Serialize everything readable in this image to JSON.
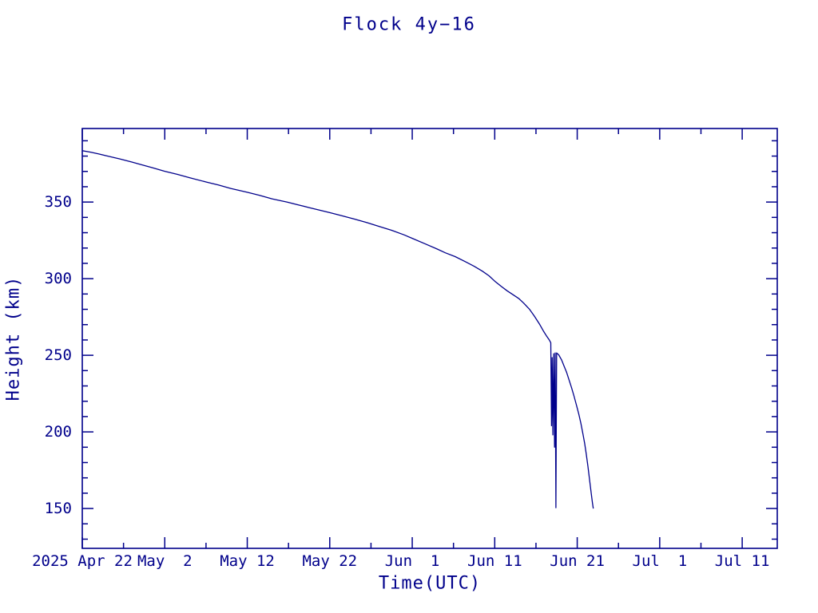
{
  "window": {
    "background": "#ffffff",
    "foreground": "#00008b"
  },
  "chart_data": {
    "type": "line",
    "title": "Flock 4y−16",
    "xlabel": "Time(UTC)",
    "ylabel": "Height (km)",
    "accent_color": "#00008b",
    "grid": false,
    "legend": "none",
    "x_axis": {
      "unit": "days since 2025 Apr 22 00:00 UTC",
      "range": [
        0,
        84.25
      ],
      "major_ticks": [
        {
          "d": 0,
          "label": "2025 Apr 22"
        },
        {
          "d": 10,
          "label": "May  2"
        },
        {
          "d": 20,
          "label": "May 12"
        },
        {
          "d": 30,
          "label": "May 22"
        },
        {
          "d": 40,
          "label": "Jun  1"
        },
        {
          "d": 50,
          "label": "Jun 11"
        },
        {
          "d": 60,
          "label": "Jun 21"
        },
        {
          "d": 70,
          "label": "Jul  1"
        },
        {
          "d": 80,
          "label": "Jul 11"
        }
      ],
      "minor_tick_step": 5
    },
    "y_axis": {
      "range": [
        124,
        398
      ],
      "major_ticks": [
        150,
        200,
        250,
        300,
        350
      ],
      "minor_tick_step": 10
    },
    "series": [
      {
        "name": "Flock 4y-16 height",
        "color": "#00008b",
        "points": [
          [
            0,
            383.5
          ],
          [
            1,
            382.6
          ],
          [
            2,
            381.4
          ],
          [
            3,
            380.1
          ],
          [
            4.5,
            378.2
          ],
          [
            6,
            376.1
          ],
          [
            7,
            374.6
          ],
          [
            8.5,
            372.4
          ],
          [
            10,
            370.1
          ],
          [
            11.5,
            368.1
          ],
          [
            13,
            365.9
          ],
          [
            15,
            363.1
          ],
          [
            16.5,
            361.1
          ],
          [
            18,
            358.9
          ],
          [
            20,
            356.4
          ],
          [
            21.5,
            354.4
          ],
          [
            23,
            352.1
          ],
          [
            24.8,
            350
          ],
          [
            26,
            348.4
          ],
          [
            27.5,
            346.4
          ],
          [
            29,
            344.4
          ],
          [
            30,
            343.1
          ],
          [
            31.5,
            341
          ],
          [
            33,
            338.9
          ],
          [
            34.5,
            336.6
          ],
          [
            36,
            334.1
          ],
          [
            37.5,
            331.6
          ],
          [
            39,
            328.6
          ],
          [
            40,
            326.3
          ],
          [
            41.5,
            322.9
          ],
          [
            43,
            319.4
          ],
          [
            44,
            316.9
          ],
          [
            45.2,
            314.4
          ],
          [
            46.5,
            310.9
          ],
          [
            47.5,
            308.1
          ],
          [
            48.5,
            304.9
          ],
          [
            49.3,
            301.9
          ],
          [
            50,
            298.4
          ],
          [
            50.8,
            294.9
          ],
          [
            51.5,
            292.1
          ],
          [
            52.2,
            289.6
          ],
          [
            52.9,
            287.1
          ],
          [
            53.5,
            284.1
          ],
          [
            54.2,
            280.1
          ],
          [
            54.8,
            275.6
          ],
          [
            55.4,
            270.6
          ],
          [
            55.9,
            265.9
          ],
          [
            56.3,
            262.4
          ],
          [
            56.6,
            260.1
          ],
          [
            56.8,
            258.2
          ],
          [
            56.88,
            204
          ],
          [
            56.96,
            248.5
          ],
          [
            57.05,
            198
          ],
          [
            57.15,
            251
          ],
          [
            57.25,
            190
          ],
          [
            57.33,
            251.5
          ],
          [
            57.42,
            150.5
          ],
          [
            57.5,
            251.5
          ],
          [
            57.75,
            250.3
          ],
          [
            58.1,
            247
          ],
          [
            58.4,
            243
          ],
          [
            58.7,
            239
          ],
          [
            59,
            234
          ],
          [
            59.3,
            229
          ],
          [
            59.6,
            223.5
          ],
          [
            59.9,
            217.5
          ],
          [
            60.2,
            211.5
          ],
          [
            60.45,
            205.5
          ],
          [
            60.7,
            198.5
          ],
          [
            60.9,
            192.5
          ],
          [
            61.1,
            185.5
          ],
          [
            61.3,
            177.5
          ],
          [
            61.5,
            168.5
          ],
          [
            61.7,
            160
          ],
          [
            61.85,
            153.5
          ],
          [
            61.95,
            150
          ]
        ]
      }
    ]
  }
}
